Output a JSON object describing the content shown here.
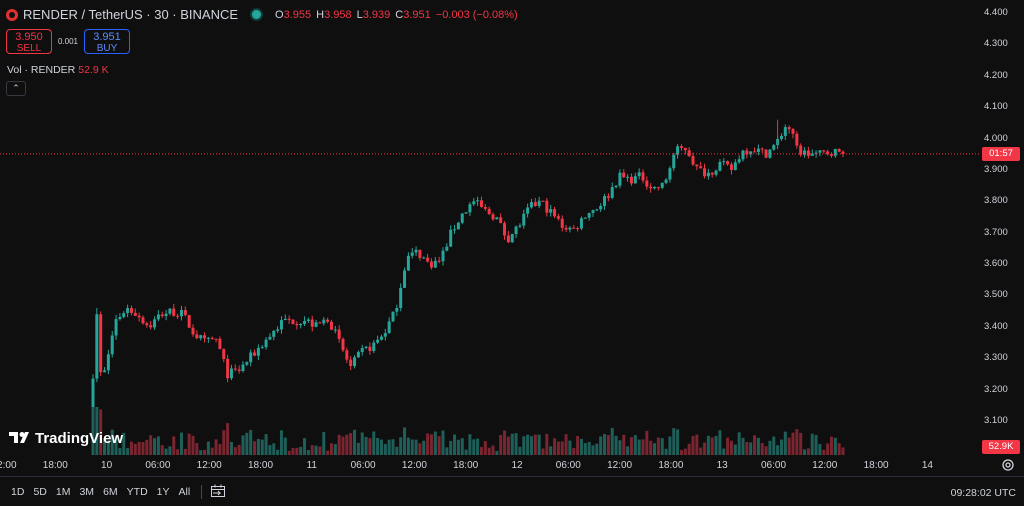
{
  "legend": {
    "title": "RENDER / TetherUS · 30 · BINANCE",
    "o_label": "O",
    "o": "3.955",
    "h_label": "H",
    "h": "3.958",
    "l_label": "L",
    "l": "3.939",
    "c_label": "C",
    "c": "3.951",
    "change": "−0.003 (−0.08%)"
  },
  "trade": {
    "sell_price": "3.950",
    "sell_label": "SELL",
    "spread": "0.001",
    "buy_price": "3.951",
    "buy_label": "BUY"
  },
  "volume": {
    "label": "Vol · RENDER",
    "value": "52.9 K"
  },
  "collapse_icon": "chevron-up-icon",
  "price_badge": "01:57",
  "volume_badge": "52.9K",
  "time_ranges": [
    "1D",
    "5D",
    "1M",
    "3M",
    "6M",
    "YTD",
    "1Y",
    "All"
  ],
  "clock": "09:28:02 UTC",
  "brand": "TradingView",
  "colors": {
    "up": "#26a69a",
    "down": "#f23645",
    "background": "#0f0f0f",
    "accent": "#2962ff"
  },
  "chart_data": {
    "type": "candlestick",
    "interval": "30",
    "y_ticks": [
      "4.400",
      "4.300",
      "4.200",
      "4.100",
      "4.000",
      "3.900",
      "3.800",
      "3.700",
      "3.600",
      "3.500",
      "3.400",
      "3.300",
      "3.200",
      "3.100"
    ],
    "ylim": [
      3.03,
      4.4
    ],
    "x_ticks": [
      "12:00",
      "18:00",
      "10",
      "06:00",
      "12:00",
      "18:00",
      "11",
      "06:00",
      "12:00",
      "18:00",
      "12",
      "06:00",
      "12:00",
      "18:00",
      "13",
      "06:00",
      "12:00",
      "18:00",
      "14"
    ],
    "last_price": 3.951,
    "close_path": [
      [
        0,
        3.25
      ],
      [
        1,
        3.25
      ],
      [
        2,
        3.42
      ],
      [
        3,
        3.46
      ],
      [
        4,
        3.44
      ],
      [
        5,
        3.4
      ],
      [
        6,
        3.44
      ],
      [
        7,
        3.45
      ],
      [
        8,
        3.44
      ],
      [
        9,
        3.38
      ],
      [
        10,
        3.35
      ],
      [
        11,
        3.36
      ],
      [
        12,
        3.25
      ],
      [
        13,
        3.26
      ],
      [
        14,
        3.3
      ],
      [
        15,
        3.34
      ],
      [
        16,
        3.38
      ],
      [
        17,
        3.42
      ],
      [
        18,
        3.42
      ],
      [
        19,
        3.42
      ],
      [
        20,
        3.4
      ],
      [
        21,
        3.43
      ],
      [
        22,
        3.35
      ],
      [
        23,
        3.27
      ],
      [
        24,
        3.32
      ],
      [
        25,
        3.34
      ],
      [
        26,
        3.38
      ],
      [
        27,
        3.45
      ],
      [
        28,
        3.62
      ],
      [
        29,
        3.64
      ],
      [
        30,
        3.6
      ],
      [
        31,
        3.61
      ],
      [
        32,
        3.7
      ],
      [
        33,
        3.76
      ],
      [
        34,
        3.8
      ],
      [
        35,
        3.77
      ],
      [
        36,
        3.75
      ],
      [
        37,
        3.68
      ],
      [
        38,
        3.72
      ],
      [
        39,
        3.78
      ],
      [
        40,
        3.8
      ],
      [
        41,
        3.76
      ],
      [
        42,
        3.72
      ],
      [
        43,
        3.71
      ],
      [
        44,
        3.76
      ],
      [
        45,
        3.78
      ],
      [
        46,
        3.82
      ],
      [
        47,
        3.88
      ],
      [
        48,
        3.87
      ],
      [
        49,
        3.88
      ],
      [
        50,
        3.84
      ],
      [
        51,
        3.85
      ],
      [
        52,
        3.96
      ],
      [
        53,
        3.97
      ],
      [
        54,
        3.9
      ],
      [
        55,
        3.89
      ],
      [
        56,
        3.92
      ],
      [
        57,
        3.9
      ],
      [
        58,
        3.96
      ],
      [
        59,
        3.97
      ],
      [
        60,
        3.95
      ],
      [
        61,
        3.98
      ],
      [
        62,
        4.05
      ],
      [
        63,
        3.96
      ],
      [
        64,
        3.95
      ],
      [
        65,
        3.95
      ],
      [
        66,
        3.96
      ],
      [
        67,
        3.951
      ]
    ],
    "open_price": 3.07,
    "first_spike_high": 3.46,
    "peak_high": 4.06
  }
}
